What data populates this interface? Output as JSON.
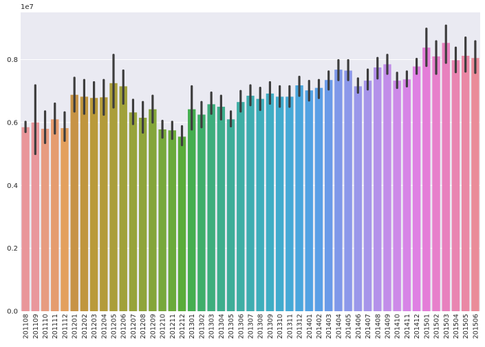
{
  "chart_data": {
    "type": "bar",
    "title": "",
    "xlabel": "",
    "ylabel": "",
    "y_offset_label": "1e7",
    "ylim": [
      0,
      9.5
    ],
    "yticks": [
      0.0,
      0.2,
      0.4,
      0.6,
      0.8
    ],
    "ytick_values": [
      0,
      2,
      4,
      6,
      8
    ],
    "grid": true,
    "legend": "none",
    "categories": [
      "201108",
      "201109",
      "201110",
      "201111",
      "201112",
      "201201",
      "201202",
      "201203",
      "201204",
      "201205",
      "201206",
      "201207",
      "201208",
      "201209",
      "201210",
      "201211",
      "201212",
      "201301",
      "201302",
      "201303",
      "201304",
      "201305",
      "201306",
      "201307",
      "201308",
      "201309",
      "201310",
      "201311",
      "201312",
      "201401",
      "201402",
      "201403",
      "201404",
      "201405",
      "201406",
      "201407",
      "201408",
      "201409",
      "201410",
      "201411",
      "201412",
      "201501",
      "201502",
      "201503",
      "201504",
      "201505",
      "201506"
    ],
    "values": [
      5.85,
      6.0,
      5.8,
      6.1,
      5.82,
      6.88,
      6.82,
      6.78,
      6.8,
      7.25,
      7.15,
      6.32,
      6.15,
      6.42,
      5.78,
      5.75,
      5.55,
      6.42,
      6.25,
      6.58,
      6.5,
      6.1,
      6.65,
      6.85,
      6.75,
      6.92,
      6.82,
      6.82,
      7.18,
      7.02,
      7.1,
      7.35,
      7.68,
      7.65,
      7.15,
      7.33,
      7.75,
      7.85,
      7.33,
      7.37,
      7.78,
      8.38,
      8.1,
      8.53,
      7.98,
      8.12,
      8.05
    ],
    "error_low": [
      5.7,
      5.0,
      5.35,
      5.65,
      5.42,
      6.35,
      6.28,
      6.3,
      6.25,
      6.48,
      6.6,
      5.95,
      5.68,
      6.0,
      5.52,
      5.48,
      5.28,
      5.78,
      5.85,
      6.28,
      6.1,
      5.88,
      6.35,
      6.55,
      6.4,
      6.6,
      6.5,
      6.5,
      6.85,
      6.7,
      6.78,
      7.05,
      7.35,
      7.35,
      6.95,
      7.05,
      7.4,
      7.55,
      7.1,
      7.15,
      7.55,
      7.8,
      7.55,
      7.9,
      7.6,
      7.62,
      7.58
    ],
    "error_high": [
      6.02,
      7.18,
      6.35,
      6.6,
      6.32,
      7.42,
      7.35,
      7.28,
      7.35,
      8.15,
      7.65,
      6.72,
      6.65,
      6.85,
      6.05,
      6.02,
      5.88,
      7.15,
      6.65,
      6.95,
      6.85,
      6.35,
      7.0,
      7.18,
      7.1,
      7.28,
      7.15,
      7.15,
      7.45,
      7.32,
      7.35,
      7.62,
      7.98,
      7.98,
      7.4,
      7.68,
      8.05,
      8.15,
      7.58,
      7.62,
      8.02,
      8.98,
      8.58,
      9.08,
      8.38,
      8.7,
      8.58
    ],
    "colors": [
      "#e9969a",
      "#e9979c",
      "#e79c80",
      "#e59c6f",
      "#e3a05e",
      "#c79346",
      "#c0963f",
      "#b99a3a",
      "#b39b3b",
      "#aa9e3b",
      "#a0a13b",
      "#97a33b",
      "#8fa43b",
      "#84a53a",
      "#77a83b",
      "#6aaa3b",
      "#5aac3a",
      "#45ae50",
      "#3fae6a",
      "#3eae7d",
      "#3eae8c",
      "#3ead98",
      "#3eaea4",
      "#3eadb0",
      "#3eaebb",
      "#3fadc4",
      "#41abcd",
      "#45a9d6",
      "#4aa6dd",
      "#52a2e3",
      "#5a9fe6",
      "#6a9ae8",
      "#7f98e9",
      "#8c98ea",
      "#9a97ea",
      "#a795ea",
      "#b491ea",
      "#c28de9",
      "#cd8ae8",
      "#d785e6",
      "#df81e3",
      "#e47dd8",
      "#e77fcb",
      "#e880be",
      "#e985b1",
      "#ea88a5",
      "#ea8c99"
    ]
  }
}
